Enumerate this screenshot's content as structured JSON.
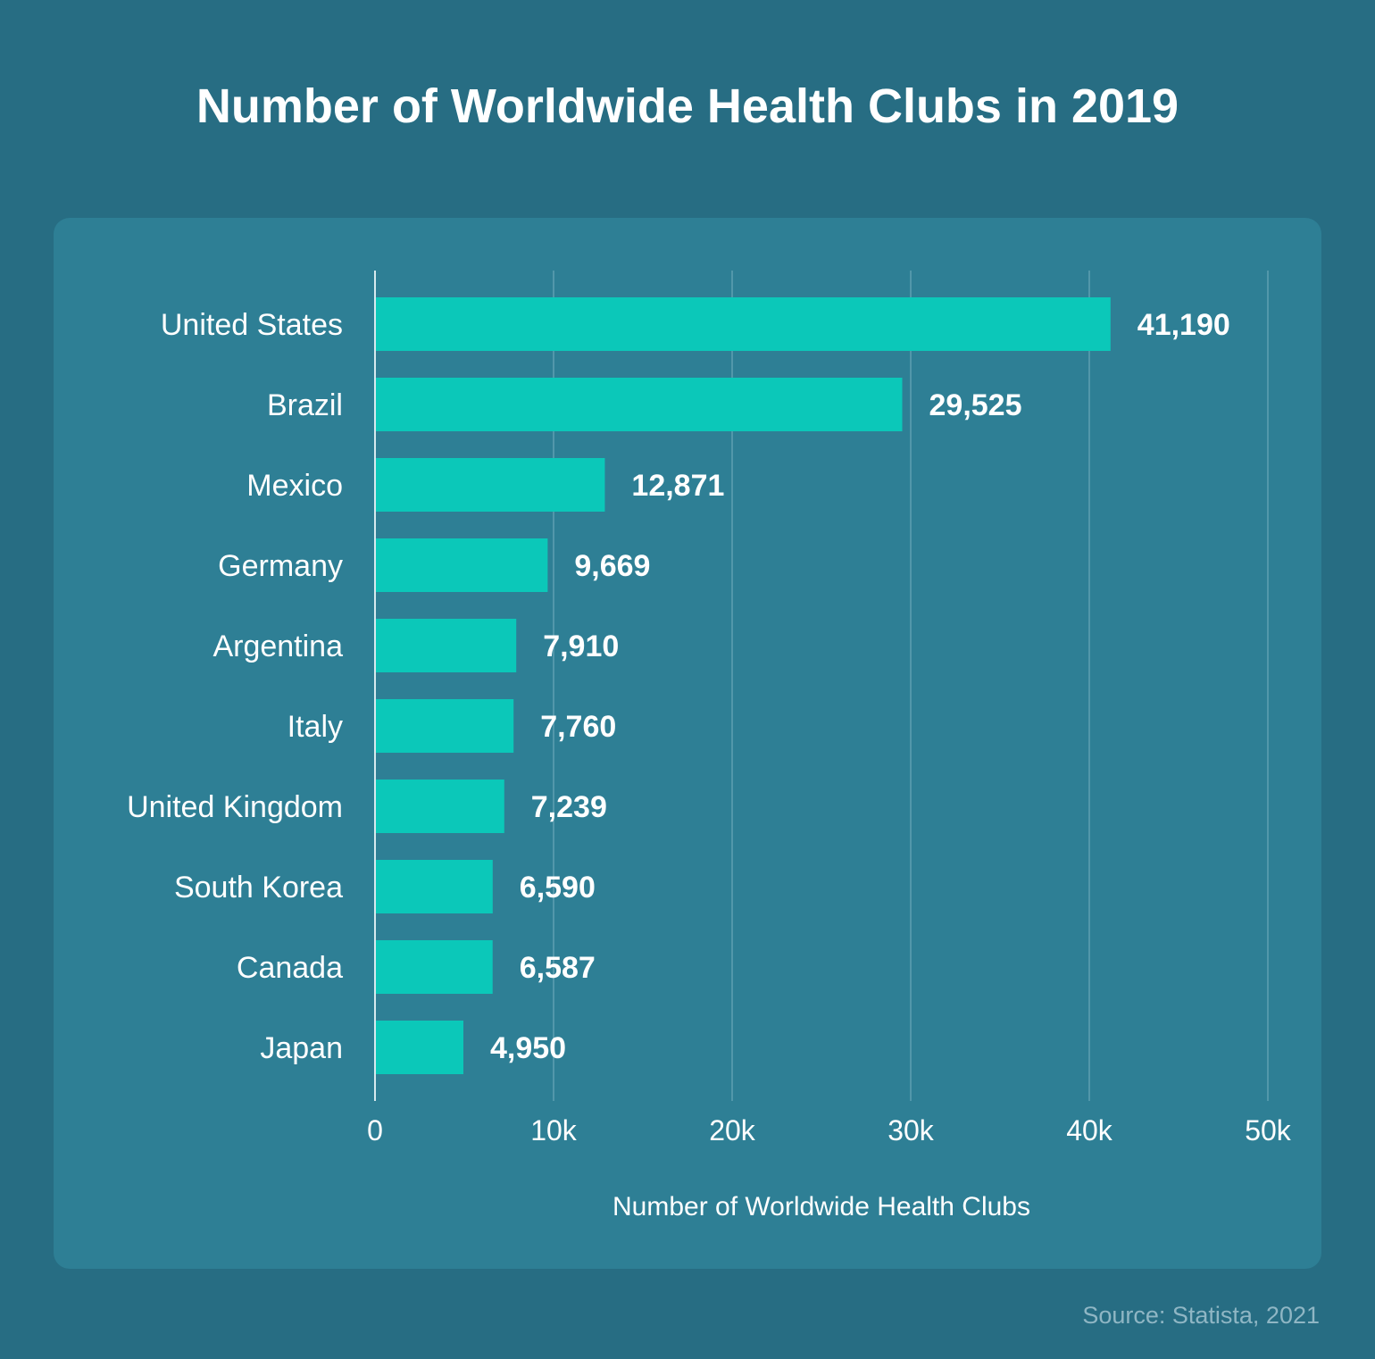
{
  "title": "Number of Worldwide Health Clubs in 2019",
  "source": "Source: Statista, 2021",
  "colors": {
    "background": "#276d83",
    "panel": "#2e7f95",
    "bar": "#0bc8b9",
    "gridline": "#5f9fb1",
    "text": "#ffffff",
    "source_text": "#8fb6c4"
  },
  "chart_data": {
    "type": "bar",
    "orientation": "horizontal",
    "title": "Number of Worldwide Health Clubs in 2019",
    "xlabel": "Number of Worldwide Health Clubs",
    "ylabel": "",
    "categories": [
      "United States",
      "Brazil",
      "Mexico",
      "Germany",
      "Argentina",
      "Italy",
      "United Kingdom",
      "South Korea",
      "Canada",
      "Japan"
    ],
    "values": [
      41190,
      29525,
      12871,
      9669,
      7910,
      7760,
      7239,
      6590,
      6587,
      4950
    ],
    "value_labels": [
      "41,190",
      "29,525",
      "12,871",
      "9,669",
      "7,910",
      "7,760",
      "7,239",
      "6,590",
      "6,587",
      "4,950"
    ],
    "xlim": [
      0,
      50000
    ],
    "x_ticks": [
      0,
      10000,
      20000,
      30000,
      40000,
      50000
    ],
    "x_tick_labels": [
      "0",
      "10k",
      "20k",
      "30k",
      "40k",
      "50k"
    ],
    "grid": "vertical",
    "legend": "none"
  }
}
